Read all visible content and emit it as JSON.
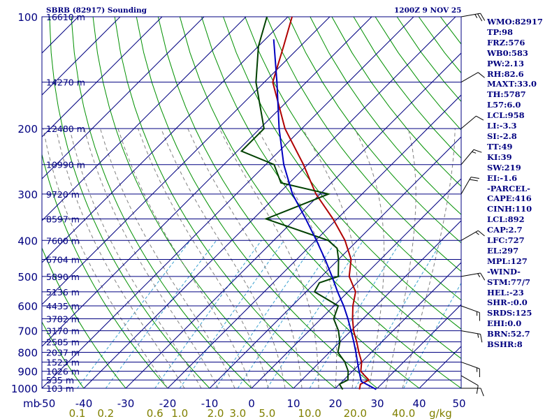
{
  "chart_data": {
    "type": "skew-t",
    "title": "SBRB (82917) Sounding",
    "time": "1200Z  9 NOV 25",
    "p_range": [
      1000,
      100
    ],
    "t_range": [
      -50,
      50
    ],
    "pressure_ticks": [
      100,
      200,
      300,
      400,
      500,
      600,
      700,
      800,
      900,
      1000
    ],
    "temperature_ticks": [
      -50,
      -40,
      -30,
      -20,
      -10,
      0,
      10,
      20,
      30,
      40,
      50
    ],
    "x_unit_label": "mb",
    "height_labels": [
      {
        "p": 100,
        "label": "16610 m"
      },
      {
        "p": 150,
        "label": "14270 m"
      },
      {
        "p": 200,
        "label": "12480 m"
      },
      {
        "p": 250,
        "label": "10990 m"
      },
      {
        "p": 300,
        "label": "9720 m"
      },
      {
        "p": 350,
        "label": "8597 m"
      },
      {
        "p": 400,
        "label": "7600 m"
      },
      {
        "p": 450,
        "label": "6704 m"
      },
      {
        "p": 500,
        "label": "5890 m"
      },
      {
        "p": 550,
        "label": "5136 m"
      },
      {
        "p": 600,
        "label": "4435 m"
      },
      {
        "p": 650,
        "label": "3782 m"
      },
      {
        "p": 700,
        "label": "3170 m"
      },
      {
        "p": 750,
        "label": "2585 m"
      },
      {
        "p": 800,
        "label": "2037 m"
      },
      {
        "p": 850,
        "label": "1523 m"
      },
      {
        "p": 900,
        "label": "1026 m"
      },
      {
        "p": 950,
        "label": "535 m"
      },
      {
        "p": 1000,
        "label": "103 m"
      }
    ],
    "mixing_ratio_labels": [
      "0.1",
      "0.2",
      "0.6",
      "1.0",
      "2.0",
      "3.0",
      "5.0",
      "10.0",
      "20.0",
      "40.0"
    ],
    "mixing_ratio_unit": "g/kg",
    "series": [
      {
        "name": "Temperature",
        "color": "#b00000",
        "points": [
          [
            1007,
            26
          ],
          [
            975,
            25
          ],
          [
            950,
            26
          ],
          [
            925,
            24
          ],
          [
            900,
            22
          ],
          [
            850,
            20
          ],
          [
            800,
            17
          ],
          [
            750,
            14
          ],
          [
            700,
            10.6
          ],
          [
            650,
            7.5
          ],
          [
            600,
            4.5
          ],
          [
            550,
            1.8
          ],
          [
            500,
            -3.4
          ],
          [
            450,
            -7
          ],
          [
            400,
            -13
          ],
          [
            350,
            -21
          ],
          [
            300,
            -31
          ],
          [
            250,
            -41
          ],
          [
            200,
            -54
          ],
          [
            150,
            -68
          ],
          [
            120,
            -74
          ],
          [
            100,
            -79
          ]
        ]
      },
      {
        "name": "Dewpoint",
        "color": "#004000",
        "points": [
          [
            1007,
            22
          ],
          [
            975,
            20
          ],
          [
            950,
            21
          ],
          [
            925,
            20
          ],
          [
            900,
            19
          ],
          [
            850,
            16
          ],
          [
            800,
            12
          ],
          [
            750,
            10
          ],
          [
            700,
            7
          ],
          [
            650,
            3
          ],
          [
            600,
            1
          ],
          [
            550,
            -8
          ],
          [
            520,
            -9
          ],
          [
            500,
            -6
          ],
          [
            450,
            -10
          ],
          [
            420,
            -13
          ],
          [
            400,
            -17
          ],
          [
            350,
            -37
          ],
          [
            300,
            -28
          ],
          [
            280,
            -42
          ],
          [
            250,
            -48
          ],
          [
            230,
            -59
          ],
          [
            200,
            -59
          ],
          [
            150,
            -72
          ],
          [
            120,
            -80
          ],
          [
            100,
            -85
          ]
        ]
      },
      {
        "name": "Parcel",
        "color": "#0000c0",
        "points": [
          [
            1007,
            30
          ],
          [
            958,
            24.5
          ],
          [
            900,
            21.6
          ],
          [
            850,
            19
          ],
          [
            800,
            16.3
          ],
          [
            750,
            13.3
          ],
          [
            700,
            10
          ],
          [
            650,
            6.4
          ],
          [
            600,
            2.3
          ],
          [
            550,
            -2.5
          ],
          [
            500,
            -7.5
          ],
          [
            450,
            -13.2
          ],
          [
            400,
            -19.8
          ],
          [
            350,
            -27.5
          ],
          [
            300,
            -36.6
          ],
          [
            250,
            -45.7
          ],
          [
            200,
            -55.4
          ],
          [
            150,
            -67
          ],
          [
            115,
            -78
          ]
        ]
      }
    ],
    "wind_barbs": [
      {
        "p": 1000,
        "dir": 90,
        "spd": 10
      },
      {
        "p": 925,
        "dir": 120,
        "spd": 10
      },
      {
        "p": 850,
        "dir": 110,
        "spd": 15
      },
      {
        "p": 700,
        "dir": 100,
        "spd": 15
      },
      {
        "p": 600,
        "dir": 110,
        "spd": 15
      },
      {
        "p": 500,
        "dir": 80,
        "spd": 15
      },
      {
        "p": 400,
        "dir": 60,
        "spd": 15
      },
      {
        "p": 300,
        "dir": 30,
        "spd": 20
      },
      {
        "p": 250,
        "dir": 40,
        "spd": 15
      },
      {
        "p": 200,
        "dir": 50,
        "spd": 10
      },
      {
        "p": 150,
        "dir": 60,
        "spd": 10
      },
      {
        "p": 100,
        "dir": 80,
        "spd": 25
      }
    ]
  },
  "side_panel": [
    "WMO:82917",
    "TP:98",
    "FRZ:576",
    "WB0:583",
    "PW:2.13",
    "RH:82.6",
    "MAXT:33.0",
    "TH:5787",
    "L57:6.0",
    "LCL:958",
    "LI:-3.3",
    "SI:-2.8",
    "TT:49",
    "KI:39",
    "SW:219",
    "EI:-1.6",
    "-PARCEL-",
    "CAPE:416",
    "CINH:110",
    "LCL:892",
    "CAP:2.7",
    "LFC:727",
    "EL:297",
    "MPL:127",
    "-WIND-",
    "STM:77/7",
    "HEL:-23",
    "SHR-:0.0",
    "SRDS:125",
    "EHI:0.0",
    "BRN:52.7",
    "BSHR:8"
  ],
  "colors": {
    "isobar": "#000080",
    "isotherm": "#000080",
    "dry_adiabat": "#009000",
    "moist_adiabat": "#808080",
    "mixing_ratio": "#3aa0d0",
    "mixing_label": "#808000",
    "text": "#000080"
  }
}
